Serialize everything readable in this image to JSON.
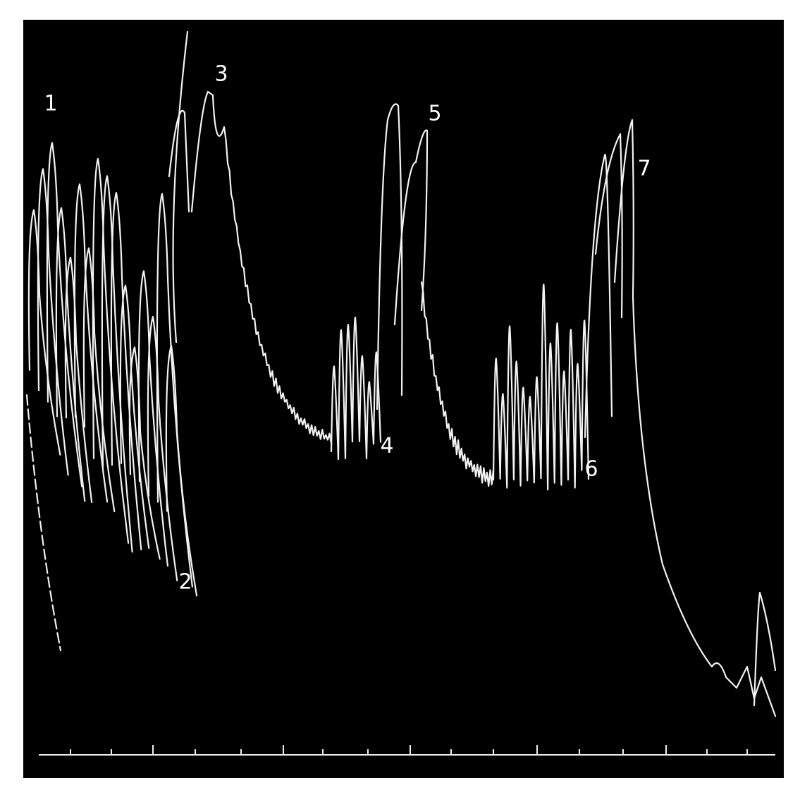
{
  "figure": {
    "labels": [
      "1",
      "2",
      "3",
      "4",
      "5",
      "6",
      "7"
    ]
  }
}
